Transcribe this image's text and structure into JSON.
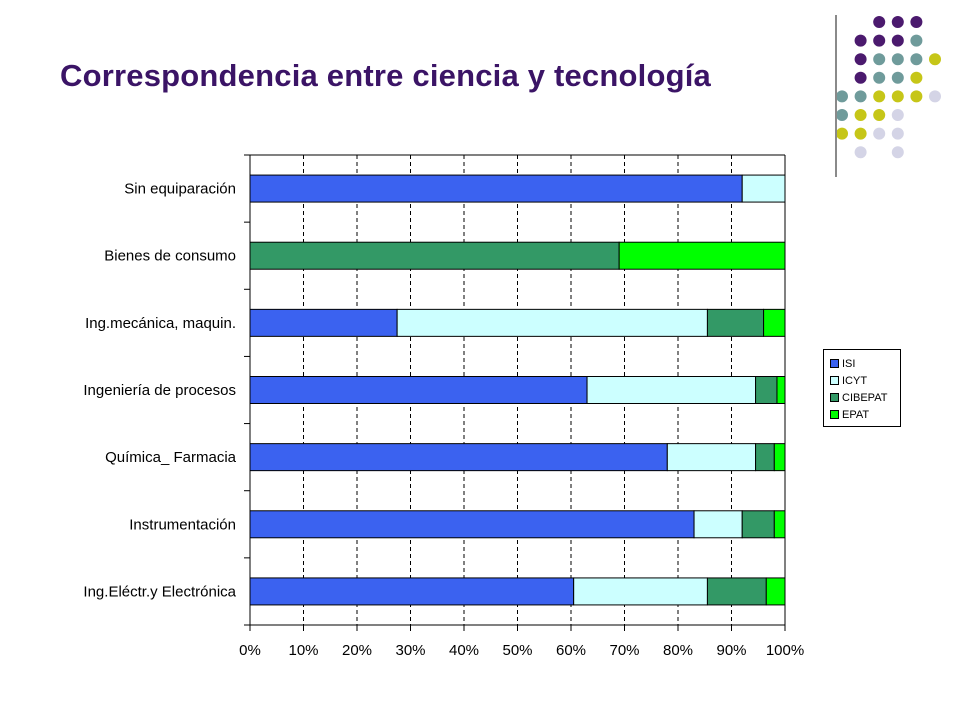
{
  "slide": {
    "title": "Correspondencia entre ciencia y tecnología"
  },
  "decoration": {
    "dot_colors": {
      "purple": "#4b1a6e",
      "teal": "#6f9b9b",
      "olive": "#c6c618",
      "lavender": "#d4d4e6"
    }
  },
  "chart_data": {
    "type": "bar",
    "orientation": "horizontal",
    "stacked": "percent",
    "categories": [
      "Sin equiparación",
      "Bienes de consumo",
      "Ing.mecánica, maquin.",
      "Ingeniería de procesos",
      "Química_ Farmacia",
      "Instrumentación",
      "Ing.Eléctr.y Electrónica"
    ],
    "series": [
      {
        "name": "ISI",
        "color": "#3b62f0",
        "values": [
          92,
          0,
          27.5,
          63,
          78,
          83,
          60.5
        ]
      },
      {
        "name": "ICYT",
        "color": "#ccffff",
        "values": [
          8,
          0,
          58,
          31.5,
          16.5,
          9,
          25
        ]
      },
      {
        "name": "CIBEPAT",
        "color": "#339966",
        "values": [
          0,
          69,
          10.5,
          4,
          3.5,
          6,
          11
        ]
      },
      {
        "name": "EPAT",
        "color": "#00ff00",
        "values": [
          0,
          31,
          4,
          1.5,
          2,
          2,
          3.5
        ]
      }
    ],
    "x_ticks": [
      "0%",
      "10%",
      "20%",
      "30%",
      "40%",
      "50%",
      "60%",
      "70%",
      "80%",
      "90%",
      "100%"
    ],
    "xlim": [
      0,
      100
    ],
    "grid": "vertical dashed",
    "legend_position": "right"
  }
}
